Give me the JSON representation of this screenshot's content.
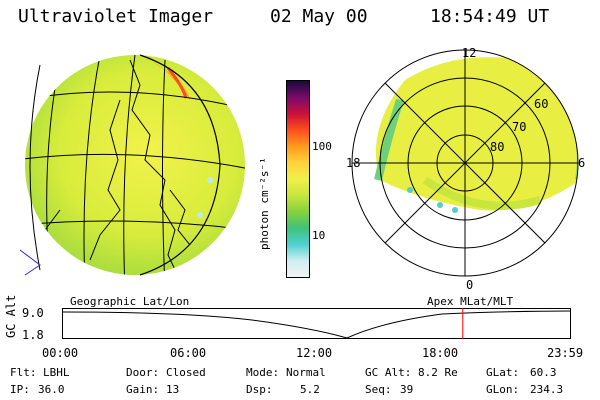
{
  "header": {
    "instrument": "Ultraviolet Imager",
    "date": "02 May 00",
    "time": "18:54:49 UT"
  },
  "colorbar": {
    "unit_label": "photon cm⁻²s⁻¹",
    "tick_100": "100",
    "tick_10": "10",
    "colors": [
      "#f2f2f2",
      "#cfeef2",
      "#4fd0d0",
      "#3fc27a",
      "#86d23e",
      "#c8e63c",
      "#f0f04a",
      "#ffd23a",
      "#ff9a1e",
      "#ff4e1e",
      "#c8103a",
      "#7a0a6a",
      "#1a0a3a"
    ]
  },
  "geo_panel": {
    "label": "Geographic Lat/Lon"
  },
  "polar_panel": {
    "label": "Apex MLat/MLT",
    "mlt_12": "12",
    "mlt_18": "18",
    "mlt_6": "6",
    "mlt_0": "0",
    "mlat_60": "60",
    "mlat_70": "70",
    "mlat_80": "80"
  },
  "altitude_plot": {
    "axis_label": "GC Alt",
    "y_top": "9.0",
    "y_bottom": "1.8",
    "x_ticks": [
      "00:00",
      "06:00",
      "12:00",
      "18:00",
      "23:59"
    ],
    "current_time_fraction": 0.788
  },
  "status": {
    "flt_label": "Flt:",
    "flt_value": "LBHL",
    "ip_label": "IP:",
    "ip_value": "36.0",
    "door_label": "Door:",
    "door_value": "Closed",
    "gain_label": "Gain:",
    "gain_value": "13",
    "mode_label": "Mode:",
    "mode_value": "Normal",
    "dsp_label": "Dsp:",
    "dsp_value": "5.2",
    "gcalt_label": "GC Alt:",
    "gcalt_value": "8.2 Re",
    "seq_label": "Seq:",
    "seq_value": "39",
    "glat_label": "GLat:",
    "glat_value": "60.3",
    "glon_label": "GLon:",
    "glon_value": "234.3"
  }
}
